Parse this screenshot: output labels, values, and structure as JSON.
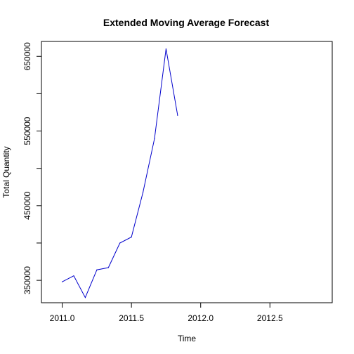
{
  "chart_data": {
    "type": "line",
    "title": "Extended Moving Average Forecast",
    "xlabel": "Time",
    "ylabel": "Total Quantity",
    "xlim": [
      2010.85,
      2012.95
    ],
    "ylim": [
      320000,
      670000
    ],
    "x_ticks": [
      2011.0,
      2011.5,
      2012.0,
      2012.5
    ],
    "x_tick_labels": [
      "2011.0",
      "2011.5",
      "2012.0",
      "2012.5"
    ],
    "y_ticks": [
      350000,
      400000,
      450000,
      500000,
      550000,
      600000,
      650000
    ],
    "y_tick_labels": [
      "350000",
      "",
      "450000",
      "",
      "550000",
      "",
      "650000"
    ],
    "grid": false,
    "series": [
      {
        "color": "#0000cc",
        "x": [
          2011.0,
          2011.0833,
          2011.1667,
          2011.25,
          2011.3333,
          2011.4167,
          2011.5,
          2011.5833,
          2011.6667,
          2011.75,
          2011.8333
        ],
        "values": [
          348000,
          356000,
          327000,
          364000,
          367000,
          400000,
          408000,
          468000,
          540000,
          660000,
          571000
        ]
      }
    ]
  }
}
